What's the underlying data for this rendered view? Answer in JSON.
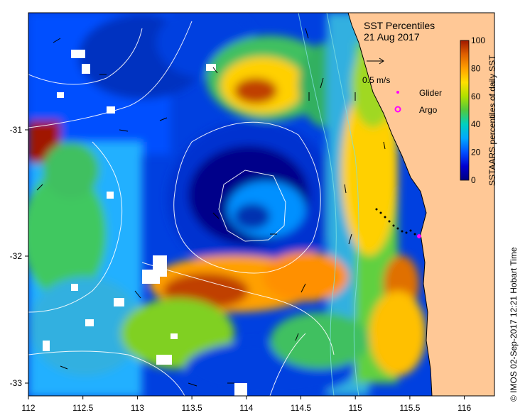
{
  "title": {
    "line1": "SST Percentiles",
    "line2": "21 Aug 2017"
  },
  "legend": {
    "velocity_scale": "0.5 m/s",
    "glider": "Glider",
    "argo": "Argo"
  },
  "colorbar": {
    "label": "SSTAARS percentiles of daily SST",
    "ticks": [
      "0",
      "20",
      "40",
      "60",
      "80",
      "100"
    ],
    "colors": [
      "#00007f",
      "#0000d0",
      "#0030ff",
      "#0090ff",
      "#00d8e0",
      "#30c060",
      "#70d020",
      "#c8e000",
      "#ffd000",
      "#ff9000",
      "#e86000",
      "#a82000"
    ]
  },
  "axes": {
    "x_ticks": [
      "112",
      "112.5",
      "113",
      "113.5",
      "114",
      "114.5",
      "115",
      "115.5",
      "116"
    ],
    "y_ticks": [
      "-31",
      "-32",
      "-33"
    ]
  },
  "credit": "© IMOS 02-Sep-2017 12:21 Hobart Time",
  "colors": {
    "land": "#ffc896",
    "glider_marker": "#ff00ff",
    "argo_marker": "#ff00ff"
  }
}
